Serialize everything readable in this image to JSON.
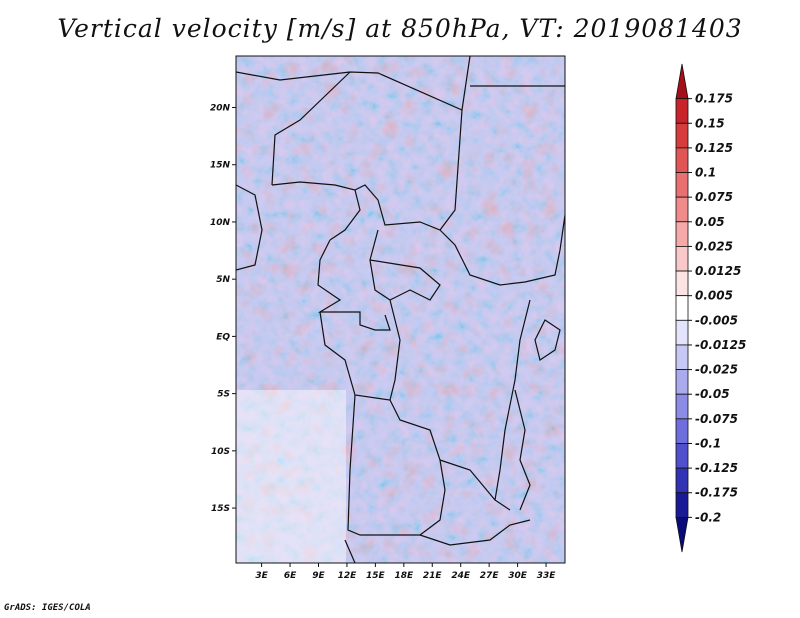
{
  "title": "Vertical velocity [m/s] at 850hPa, VT: 2019081403",
  "footer": "GrADS: IGES/COLA",
  "map": {
    "lat_ticks": [
      "20N",
      "15N",
      "10N",
      "5N",
      "EQ",
      "5S",
      "10S",
      "15S"
    ],
    "lon_ticks": [
      "3E",
      "6E",
      "9E",
      "12E",
      "15E",
      "18E",
      "21E",
      "24E",
      "27E",
      "30E",
      "33E"
    ],
    "lat_values": [
      20,
      15,
      10,
      5,
      0,
      -5,
      -10,
      -15
    ],
    "lon_values": [
      3,
      6,
      9,
      12,
      15,
      18,
      21,
      24,
      27,
      30,
      33
    ],
    "lon_range": [
      0.3,
      35
    ],
    "lat_range": [
      -19.8,
      24.5
    ]
  },
  "colorbar": {
    "labels": [
      "0.175",
      "0.15",
      "0.125",
      "0.1",
      "0.075",
      "0.05",
      "0.025",
      "0.0125",
      "0.005",
      "-0.005",
      "-0.0125",
      "-0.025",
      "-0.05",
      "-0.075",
      "-0.1",
      "-0.125",
      "-0.175",
      "-0.2"
    ],
    "colors": [
      "#a50f15",
      "#c7242b",
      "#d63c3c",
      "#e05555",
      "#e97070",
      "#ef8b8b",
      "#f5a9a9",
      "#f9c8c8",
      "#fde4e4",
      "#ffffff",
      "#e3e3fb",
      "#c8c8f5",
      "#aaaaee",
      "#8c8ce6",
      "#6e6edc",
      "#5050cc",
      "#3232b4",
      "#1a1a96",
      "#0a0a7a"
    ]
  }
}
